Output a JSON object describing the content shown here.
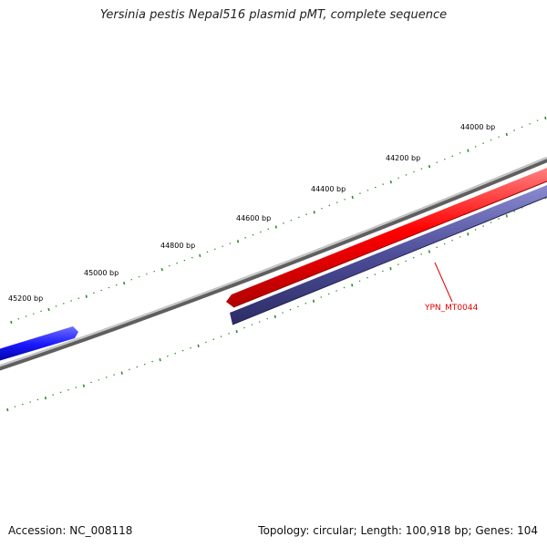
{
  "title": "Yersinia pestis Nepal516 plasmid pMT, complete sequence",
  "accession": "Accession: NC_008118",
  "summary": "Topology: circular; Length: 100,918 bp; Genes: 104",
  "tick_labels": [
    "44000 bp",
    "44200 bp",
    "44400 bp",
    "44600 bp",
    "44800 bp",
    "45000 bp",
    "45200 bp"
  ],
  "gene_label": "YPN_MT0044",
  "colors": {
    "backbone": "#8a8a8a",
    "forward_gene": "#ff0000",
    "reverse_gene": "#4d4d99",
    "other_gene": "#1a1aff",
    "ticks": "#2e8b2e",
    "gene_label": "#e00000"
  }
}
